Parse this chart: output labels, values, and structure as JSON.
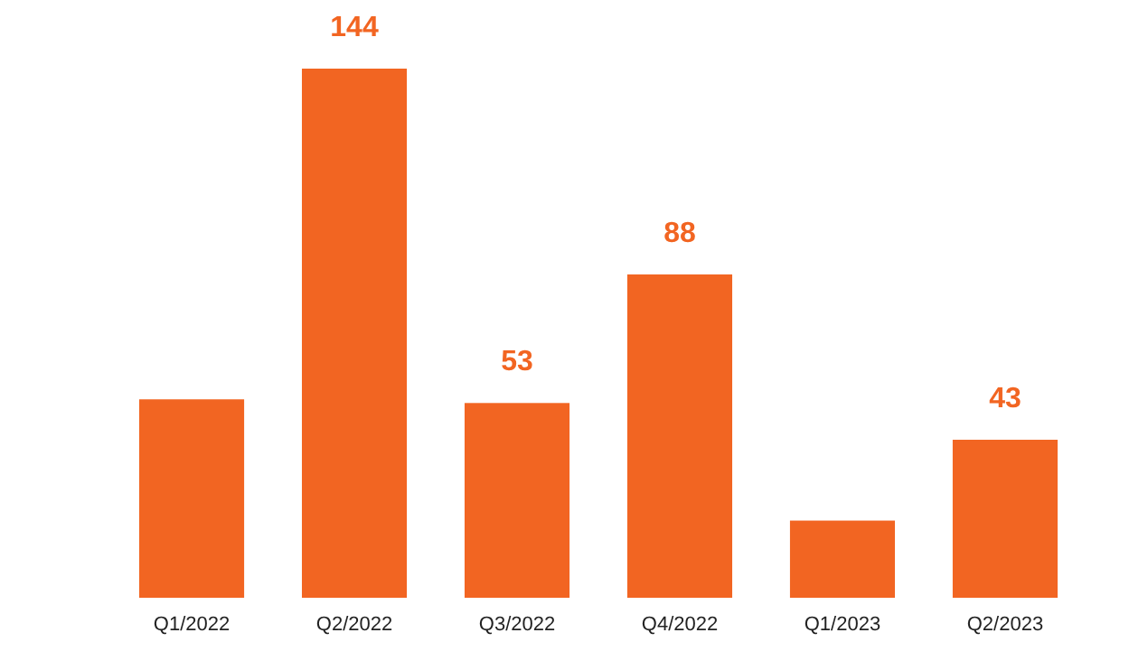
{
  "chart_data": {
    "type": "bar",
    "categories": [
      "Q1/2022",
      "Q2/2022",
      "Q3/2022",
      "Q4/2022",
      "Q1/2023",
      "Q2/2023"
    ],
    "values": [
      54,
      144,
      53,
      88,
      21,
      43
    ],
    "value_labels": [
      null,
      "144",
      "53",
      "88",
      null,
      "43"
    ],
    "color": "#f26522"
  }
}
